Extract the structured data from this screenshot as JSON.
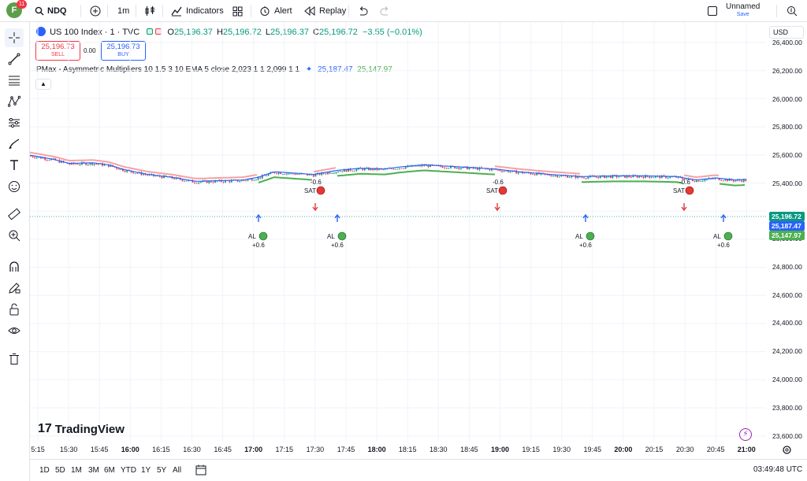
{
  "topbar": {
    "avatar_letter": "F",
    "avatar_badge": "11",
    "symbol": "NDQ",
    "interval": "1m",
    "indicators_label": "Indicators",
    "alert_label": "Alert",
    "replay_label": "Replay",
    "layout_name": "Unnamed",
    "save_label": "Save"
  },
  "legend": {
    "title": "US 100 Index · 1 · TVC",
    "open": "25,196.37",
    "high": "25,196.72",
    "low": "25,196.37",
    "close": "25,196.72",
    "change": "−3.55 (−0.01%)",
    "sell_price": "25,196.73",
    "sell_label": "SELL",
    "spread": "0.00",
    "buy_price": "25,196.73",
    "buy_label": "BUY",
    "indicator_name": "PMax - Asymmetric Multipliers 10 1.5 3 10 EMA 5 close 2,023 1 1 2,099 1 1",
    "indicator_val1": "25,187.47",
    "indicator_val2": "25,147.97"
  },
  "price_axis": {
    "currency": "USD",
    "labels": [
      "26,400.00",
      "26,200.00",
      "26,000.00",
      "25,800.00",
      "25,600.00",
      "25,400.00",
      "25,000.00",
      "24,800.00",
      "24,600.00",
      "24,400.00",
      "24,200.00",
      "24,000.00",
      "23,800.00",
      "23,600.00"
    ],
    "last_price": "25,196.72",
    "pmax_price": "25,187.47",
    "ma_price": "25,147.97"
  },
  "time_axis": {
    "labels": [
      "5:15",
      "15:30",
      "15:45",
      "16:00",
      "16:15",
      "16:30",
      "16:45",
      "17:00",
      "17:15",
      "17:30",
      "17:45",
      "18:00",
      "18:15",
      "18:30",
      "18:45",
      "19:00",
      "19:15",
      "19:30",
      "19:45",
      "20:00",
      "20:15",
      "20:30",
      "20:45",
      "21:00"
    ],
    "bold": [
      "16:00",
      "17:00",
      "18:00",
      "19:00",
      "20:00",
      "21:00"
    ]
  },
  "signals": [
    {
      "type": "AL",
      "value": "+0.6"
    },
    {
      "type": "SAT",
      "value": "-0.6"
    },
    {
      "type": "AL",
      "value": "+0.6"
    },
    {
      "type": "SAT",
      "value": "-0.6"
    },
    {
      "type": "AL",
      "value": "+0.6"
    },
    {
      "type": "SAT",
      "value": "-0.6"
    },
    {
      "type": "AL",
      "value": "+0.6"
    }
  ],
  "bottom": {
    "ranges": [
      "1D",
      "5D",
      "1M",
      "3M",
      "6M",
      "YTD",
      "1Y",
      "5Y",
      "All"
    ],
    "clock": "03:49:48 UTC",
    "watermark": "TradingView"
  },
  "colors": {
    "up": "#089981",
    "down": "#f23645",
    "pmax_up": "#4caf50",
    "pmax_down": "#f23645",
    "ma": "#2962ff",
    "signal_buy": "#4caf50",
    "signal_sell": "#e53935"
  }
}
